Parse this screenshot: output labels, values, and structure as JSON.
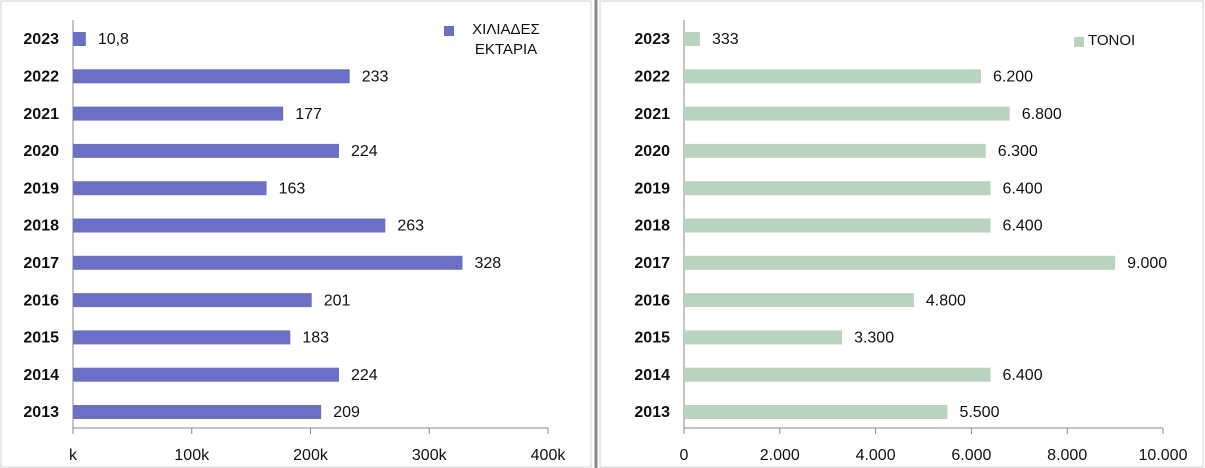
{
  "chart_data": [
    {
      "type": "bar",
      "orientation": "horizontal",
      "categories": [
        "2023",
        "2022",
        "2021",
        "2020",
        "2019",
        "2018",
        "2017",
        "2016",
        "2015",
        "2014",
        "2013"
      ],
      "series": [
        {
          "name": "ΧΙΛΙΑΔΕΣ ΕΚΤΑΡΙΑ",
          "color": "#6b70c6",
          "values": [
            10.8,
            233,
            177,
            224,
            163,
            263,
            328,
            201,
            183,
            224,
            209
          ],
          "value_labels": [
            "10,8",
            "233",
            "177",
            "224",
            "163",
            "263",
            "328",
            "201",
            "183",
            "224",
            "209"
          ]
        }
      ],
      "xlim": [
        0,
        400
      ],
      "xticks": [
        {
          "value": 0,
          "label": "k"
        },
        {
          "value": 100,
          "label": "100k"
        },
        {
          "value": 200,
          "label": "200k"
        },
        {
          "value": 300,
          "label": "300k"
        },
        {
          "value": 400,
          "label": "400k"
        }
      ],
      "legend": "upper right",
      "grid": false
    },
    {
      "type": "bar",
      "orientation": "horizontal",
      "categories": [
        "2023",
        "2022",
        "2021",
        "2020",
        "2019",
        "2018",
        "2017",
        "2016",
        "2015",
        "2014",
        "2013"
      ],
      "series": [
        {
          "name": "ΤΟΝΟΙ",
          "color": "#b9d4be",
          "values": [
            333,
            6200,
            6800,
            6300,
            6400,
            6400,
            9000,
            4800,
            3300,
            6400,
            5500
          ],
          "value_labels": [
            "333",
            "6.200",
            "6.800",
            "6.300",
            "6.400",
            "6.400",
            "9.000",
            "4.800",
            "3.300",
            "6.400",
            "5.500"
          ]
        }
      ],
      "xlim": [
        0,
        10000
      ],
      "xticks": [
        0,
        {
          "value": 2000,
          "label": "2.000"
        },
        {
          "value": 4000,
          "label": "4.000"
        },
        {
          "value": 6000,
          "label": "6.000"
        },
        {
          "value": 8000,
          "label": "8.000"
        },
        {
          "value": 10000,
          "label": "10.000"
        }
      ],
      "legend": "upper right",
      "grid": false
    }
  ]
}
